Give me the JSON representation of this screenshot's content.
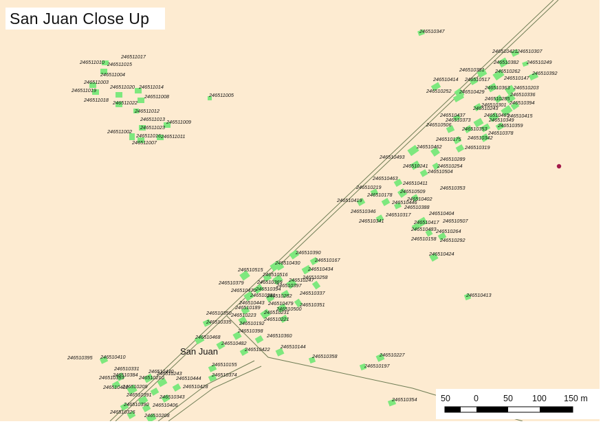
{
  "title": "San Juan Close Up",
  "place_label": "San Juan",
  "colors": {
    "background": "#fdebd1",
    "parcel_fill": "#7ee87e",
    "road": "#6f7d55",
    "point_marker": "#a3194a"
  },
  "scale_bar": {
    "labels": [
      "50",
      "0",
      "50",
      "100",
      "150 m"
    ]
  },
  "parcel_labels": [
    "246510347",
    "246510421",
    "246510307",
    "246510249",
    "246510382",
    "246510262",
    "246510392",
    "246510381",
    "246510414",
    "246510517",
    "246510147",
    "246510252",
    "246510429",
    "246510363",
    "246510203",
    "246510336",
    "246510285",
    "246510301",
    "246510394",
    "246510243",
    "246510437",
    "246510373",
    "246510465",
    "246510415",
    "246510349",
    "246510353",
    "246510359",
    "246510506",
    "246510342",
    "246510378",
    "246510175",
    "246510462",
    "246510319",
    "246510493",
    "246510289",
    "246510241",
    "246510254",
    "246510504",
    "246510463",
    "246510411",
    "246510353",
    "246510219",
    "246510509",
    "246510178",
    "246510402",
    "246510419",
    "246510446",
    "246510388",
    "246510346",
    "246510317",
    "246510404",
    "246510341",
    "246510417",
    "246510507",
    "246510483",
    "246510264",
    "246510158",
    "246510292",
    "246510424",
    "246510390",
    "246510167",
    "246510430",
    "246510434",
    "246510515",
    "246510516",
    "246510258",
    "246510379",
    "246510369",
    "246510247",
    "246510397",
    "246510470",
    "246510394",
    "246510337",
    "246510281",
    "246510282",
    "246510443",
    "246510351",
    "246510479",
    "246510189",
    "246510500",
    "246510223",
    "246510231",
    "246510221",
    "246510350",
    "246510335",
    "246510192",
    "246510398",
    "246510468",
    "246510360",
    "246510482",
    "246510422",
    "246510144",
    "246510358",
    "246510413",
    "246510227",
    "246510197",
    "246510155",
    "246510374",
    "246510395",
    "246510410",
    "246510331",
    "246510430",
    "246510384",
    "246510243",
    "246510393",
    "246510210",
    "246510444",
    "246510209",
    "246510428",
    "246510412",
    "246510391",
    "246510343",
    "246510390",
    "246510406",
    "246510326",
    "246510208",
    "246510354",
    "246511017",
    "246511010",
    "246511015",
    "246511004",
    "246511003",
    "246511020",
    "246511014",
    "246511019",
    "246511005",
    "246511008",
    "246511018",
    "246511022",
    "246511012",
    "246511013",
    "246511009",
    "246511023",
    "246511002",
    "246511016",
    "246511011",
    "246511007"
  ]
}
